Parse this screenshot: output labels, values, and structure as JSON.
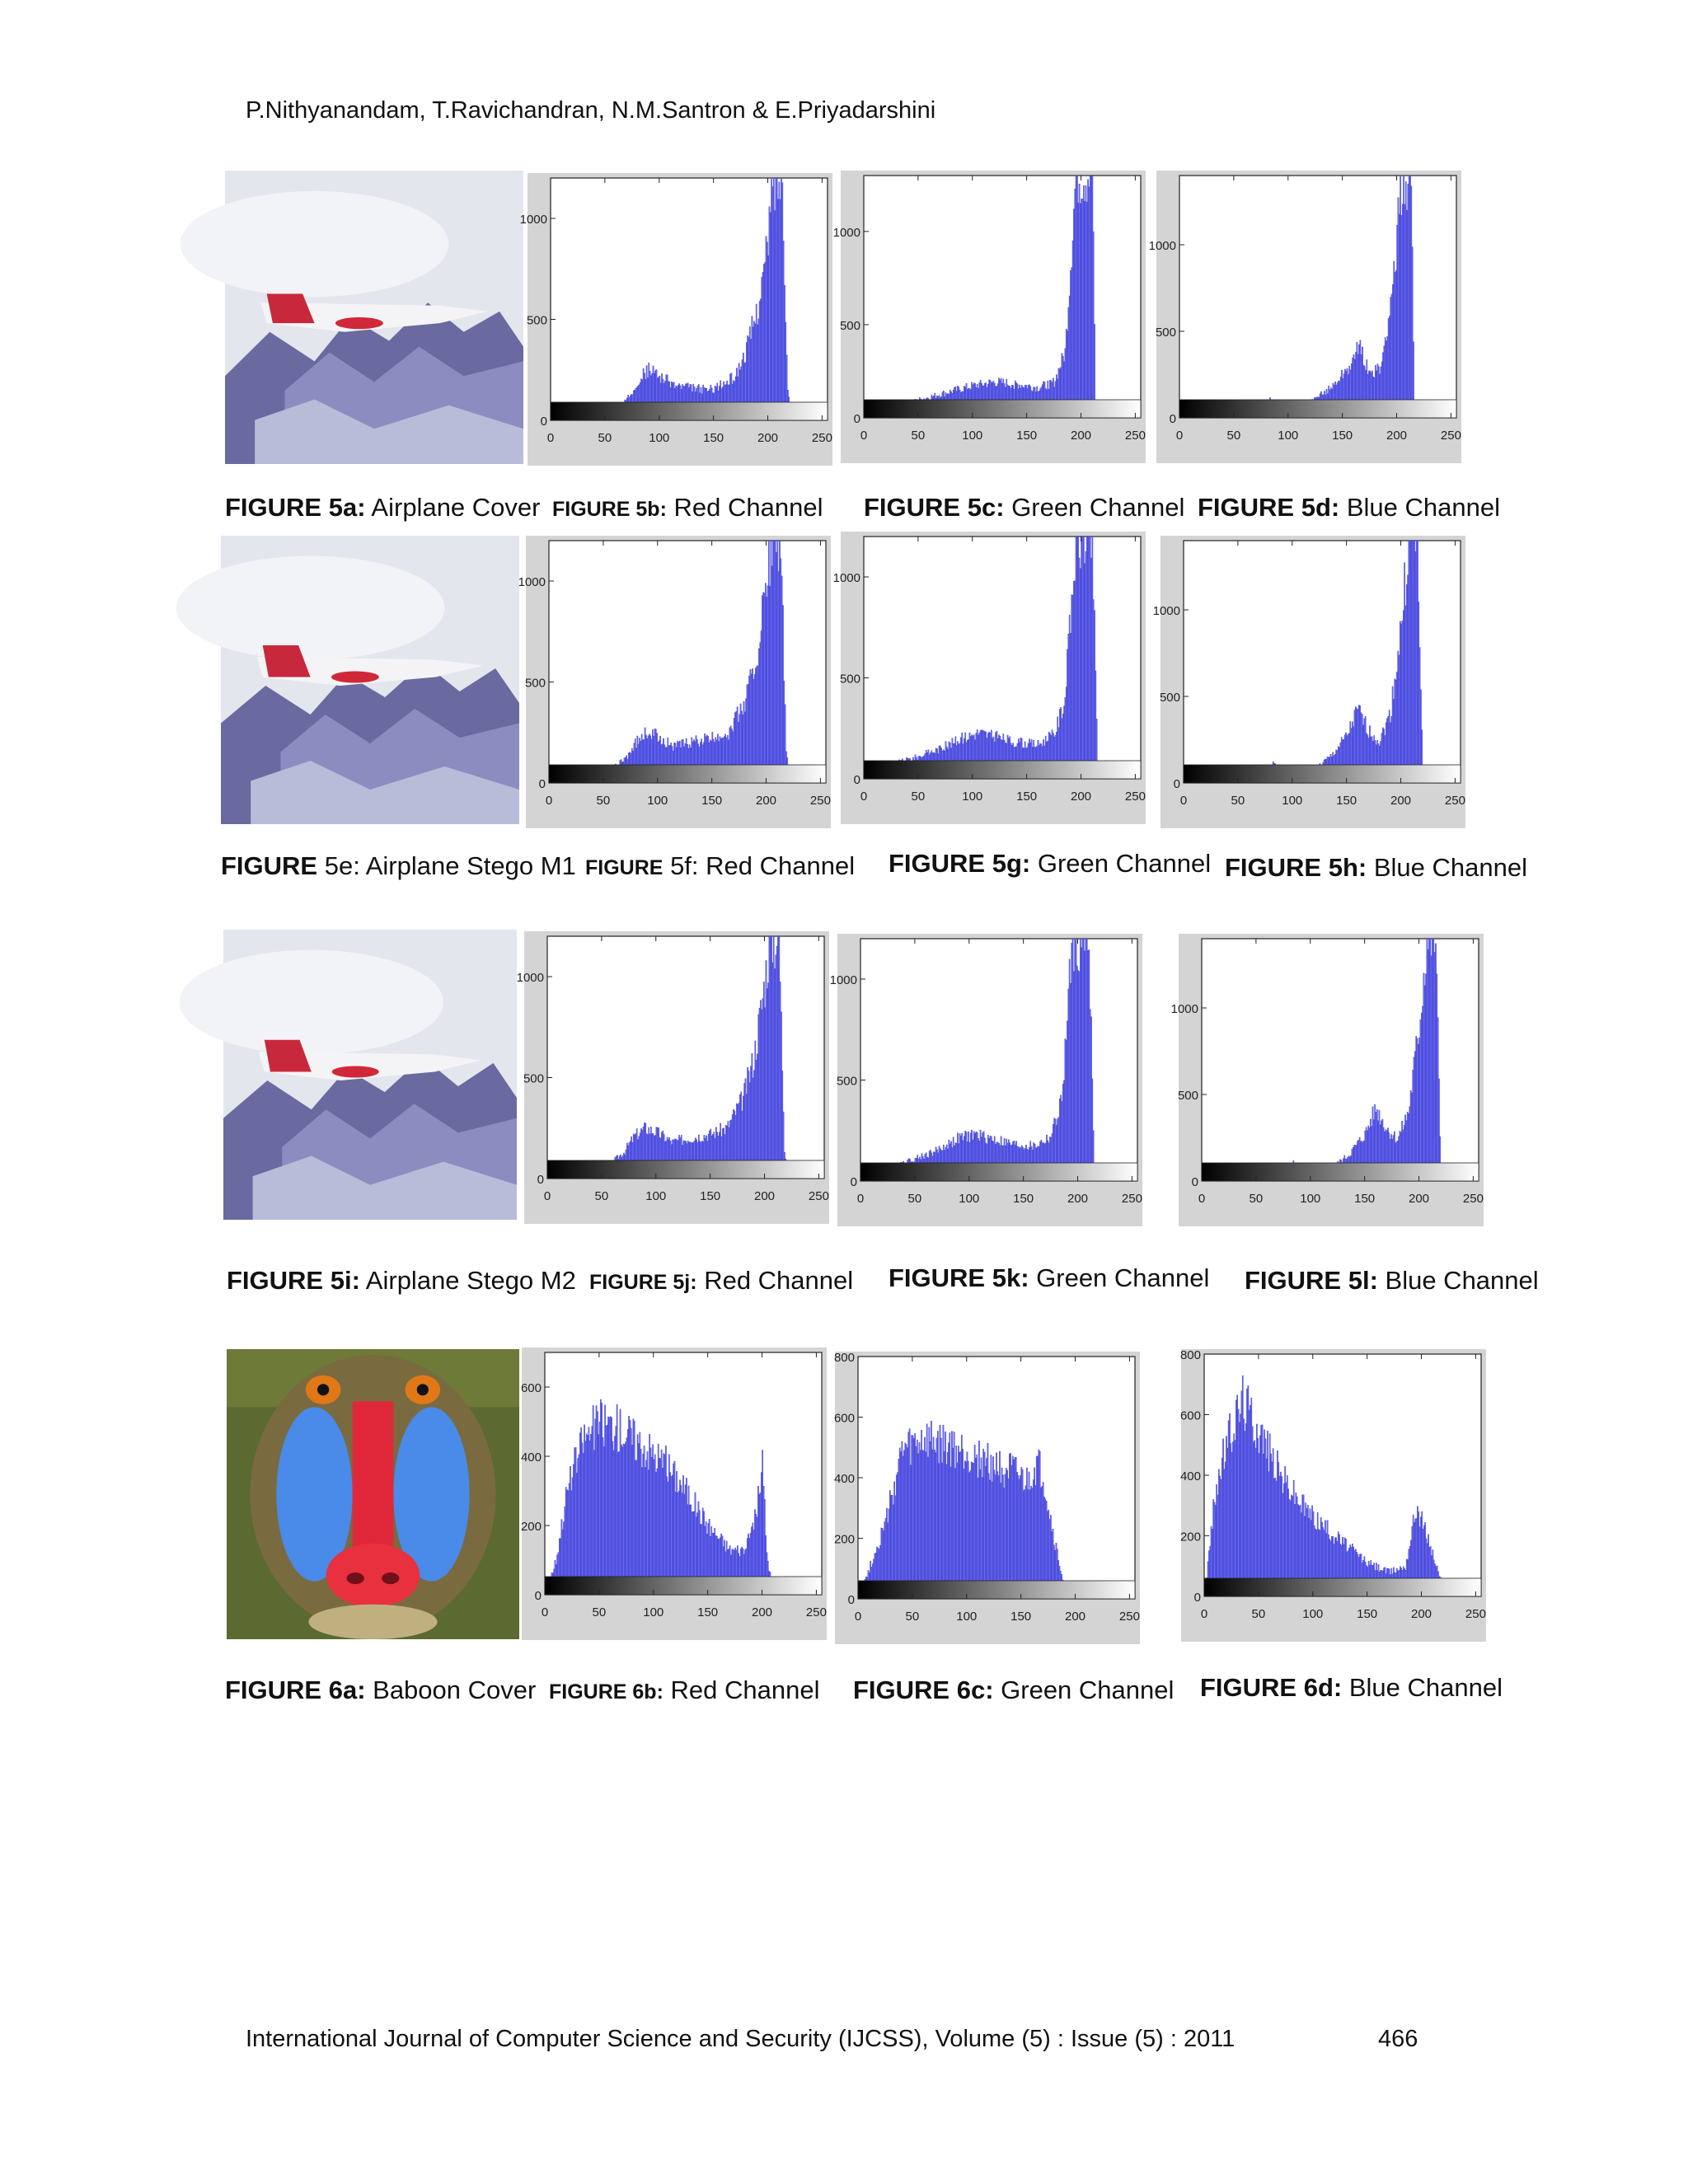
{
  "header": {
    "authors": "P.Nithyanandam, T.Ravichandran, N.M.Santron &  E.Priyadarshini"
  },
  "footer": {
    "journal": "International Journal of Computer Science and Security (IJCSS), Volume (5) : Issue (5) : 2011",
    "page": "466"
  },
  "captions": [
    {
      "label": "FIGURE 5a:",
      "text": " Airplane Cover"
    },
    {
      "label": "FIGURE  5b:",
      "text": "  Red Channel"
    },
    {
      "label": "FIGURE 5c:",
      "text": " Green Channel"
    },
    {
      "label": "FIGURE 5d:",
      "text": " Blue Channel"
    },
    {
      "label": "FIGURE",
      "text": " 5e: Airplane Stego  M1"
    },
    {
      "label": "FIGURE",
      "text": "  5f:  Red Channel"
    },
    {
      "label": "FIGURE 5g:",
      "text": " Green Channel"
    },
    {
      "label": "FIGURE 5h:",
      "text": " Blue Channel"
    },
    {
      "label": "FIGURE 5i:",
      "text": " Airplane Stego  M2"
    },
    {
      "label": "FIGURE  5j:",
      "text": "  Red Channel"
    },
    {
      "label": "FIGURE 5k:",
      "text": " Green Channel"
    },
    {
      "label": "FIGURE 5l:",
      "text": " Blue Channel"
    },
    {
      "label": "FIGURE 6a:",
      "text": " Baboon Cover"
    },
    {
      "label": "FIGURE  6b:",
      "text": "  Red Channel"
    },
    {
      "label": "FIGURE 6c:",
      "text": " Green Channel"
    },
    {
      "label": "FIGURE 6d:",
      "text": " Blue Channel"
    }
  ],
  "chart_data": [
    {
      "type": "bar",
      "id": "5b",
      "ylim": [
        0,
        1200
      ],
      "xlim": [
        0,
        255
      ],
      "yticks": [
        0,
        500,
        1000
      ],
      "xticks": [
        0,
        50,
        100,
        150,
        200,
        250
      ],
      "profile": [
        [
          0,
          0
        ],
        [
          25,
          5
        ],
        [
          40,
          20
        ],
        [
          55,
          30
        ],
        [
          70,
          100
        ],
        [
          80,
          200
        ],
        [
          90,
          250
        ],
        [
          100,
          220
        ],
        [
          115,
          170
        ],
        [
          130,
          160
        ],
        [
          145,
          150
        ],
        [
          160,
          180
        ],
        [
          170,
          220
        ],
        [
          180,
          350
        ],
        [
          190,
          550
        ],
        [
          198,
          800
        ],
        [
          205,
          1200
        ],
        [
          213,
          1200
        ],
        [
          218,
          150
        ],
        [
          222,
          0
        ],
        [
          255,
          0
        ]
      ]
    },
    {
      "type": "bar",
      "id": "5c",
      "ylim": [
        0,
        1300
      ],
      "xlim": [
        0,
        255
      ],
      "yticks": [
        0,
        500,
        1000
      ],
      "xticks": [
        0,
        50,
        100,
        150,
        200,
        250
      ],
      "profile": [
        [
          0,
          0
        ],
        [
          5,
          30
        ],
        [
          20,
          70
        ],
        [
          40,
          80
        ],
        [
          60,
          110
        ],
        [
          80,
          140
        ],
        [
          100,
          170
        ],
        [
          120,
          190
        ],
        [
          140,
          180
        ],
        [
          160,
          160
        ],
        [
          175,
          190
        ],
        [
          185,
          350
        ],
        [
          195,
          1300
        ],
        [
          210,
          1300
        ],
        [
          213,
          60
        ],
        [
          218,
          0
        ],
        [
          255,
          0
        ]
      ]
    },
    {
      "type": "bar",
      "id": "5d",
      "ylim": [
        0,
        1400
      ],
      "xlim": [
        0,
        255
      ],
      "yticks": [
        0,
        500,
        1000
      ],
      "xticks": [
        0,
        50,
        100,
        150,
        200,
        250
      ],
      "profile": [
        [
          0,
          0
        ],
        [
          75,
          0
        ],
        [
          82,
          110
        ],
        [
          90,
          70
        ],
        [
          105,
          40
        ],
        [
          115,
          60
        ],
        [
          125,
          110
        ],
        [
          140,
          180
        ],
        [
          160,
          330
        ],
        [
          165,
          420
        ],
        [
          175,
          250
        ],
        [
          185,
          280
        ],
        [
          195,
          700
        ],
        [
          205,
          1400
        ],
        [
          213,
          1400
        ],
        [
          216,
          0
        ],
        [
          255,
          0
        ]
      ]
    },
    {
      "type": "bar",
      "id": "5f",
      "ylim": [
        0,
        1200
      ],
      "xlim": [
        0,
        255
      ],
      "yticks": [
        0,
        500,
        1000
      ],
      "xticks": [
        0,
        50,
        100,
        150,
        200,
        250
      ],
      "profile": [
        [
          0,
          0
        ],
        [
          25,
          10
        ],
        [
          40,
          30
        ],
        [
          55,
          60
        ],
        [
          70,
          120
        ],
        [
          80,
          200
        ],
        [
          90,
          250
        ],
        [
          100,
          230
        ],
        [
          115,
          180
        ],
        [
          130,
          200
        ],
        [
          150,
          220
        ],
        [
          165,
          250
        ],
        [
          180,
          400
        ],
        [
          190,
          600
        ],
        [
          198,
          900
        ],
        [
          205,
          1200
        ],
        [
          213,
          1200
        ],
        [
          218,
          150
        ],
        [
          222,
          0
        ],
        [
          255,
          0
        ]
      ]
    },
    {
      "type": "bar",
      "id": "5g",
      "ylim": [
        0,
        1200
      ],
      "xlim": [
        0,
        255
      ],
      "yticks": [
        0,
        500,
        1000
      ],
      "xticks": [
        0,
        50,
        100,
        150,
        200,
        250
      ],
      "profile": [
        [
          0,
          0
        ],
        [
          10,
          60
        ],
        [
          30,
          80
        ],
        [
          50,
          110
        ],
        [
          70,
          150
        ],
        [
          90,
          200
        ],
        [
          105,
          230
        ],
        [
          120,
          210
        ],
        [
          140,
          180
        ],
        [
          160,
          170
        ],
        [
          175,
          220
        ],
        [
          185,
          400
        ],
        [
          195,
          1200
        ],
        [
          210,
          1200
        ],
        [
          215,
          60
        ],
        [
          220,
          0
        ],
        [
          255,
          0
        ]
      ]
    },
    {
      "type": "bar",
      "id": "5h",
      "ylim": [
        0,
        1400
      ],
      "xlim": [
        0,
        255
      ],
      "yticks": [
        0,
        500,
        1000
      ],
      "xticks": [
        0,
        50,
        100,
        150,
        200,
        250
      ],
      "profile": [
        [
          0,
          0
        ],
        [
          75,
          0
        ],
        [
          82,
          110
        ],
        [
          90,
          80
        ],
        [
          105,
          60
        ],
        [
          120,
          80
        ],
        [
          135,
          150
        ],
        [
          150,
          270
        ],
        [
          160,
          420
        ],
        [
          170,
          300
        ],
        [
          180,
          240
        ],
        [
          190,
          400
        ],
        [
          200,
          900
        ],
        [
          207,
          1400
        ],
        [
          215,
          1400
        ],
        [
          220,
          0
        ],
        [
          255,
          0
        ]
      ]
    },
    {
      "type": "bar",
      "id": "5j",
      "ylim": [
        0,
        1200
      ],
      "xlim": [
        0,
        255
      ],
      "yticks": [
        0,
        500,
        1000
      ],
      "xticks": [
        0,
        50,
        100,
        150,
        200,
        250
      ],
      "profile": [
        [
          0,
          0
        ],
        [
          25,
          10
        ],
        [
          40,
          30
        ],
        [
          55,
          60
        ],
        [
          70,
          130
        ],
        [
          80,
          210
        ],
        [
          90,
          250
        ],
        [
          100,
          230
        ],
        [
          115,
          180
        ],
        [
          130,
          200
        ],
        [
          150,
          220
        ],
        [
          165,
          250
        ],
        [
          180,
          400
        ],
        [
          190,
          600
        ],
        [
          198,
          900
        ],
        [
          205,
          1200
        ],
        [
          213,
          1200
        ],
        [
          218,
          150
        ],
        [
          222,
          0
        ],
        [
          255,
          0
        ]
      ]
    },
    {
      "type": "bar",
      "id": "5k",
      "ylim": [
        0,
        1200
      ],
      "xlim": [
        0,
        255
      ],
      "yticks": [
        0,
        500,
        1000
      ],
      "xticks": [
        0,
        50,
        100,
        150,
        200,
        250
      ],
      "profile": [
        [
          0,
          0
        ],
        [
          10,
          60
        ],
        [
          30,
          80
        ],
        [
          50,
          110
        ],
        [
          70,
          150
        ],
        [
          90,
          210
        ],
        [
          105,
          230
        ],
        [
          120,
          210
        ],
        [
          140,
          180
        ],
        [
          160,
          170
        ],
        [
          175,
          220
        ],
        [
          185,
          400
        ],
        [
          195,
          1200
        ],
        [
          210,
          1200
        ],
        [
          215,
          60
        ],
        [
          220,
          0
        ],
        [
          255,
          0
        ]
      ]
    },
    {
      "type": "bar",
      "id": "5l",
      "ylim": [
        0,
        1400
      ],
      "xlim": [
        0,
        255
      ],
      "yticks": [
        0,
        500,
        1000
      ],
      "xticks": [
        0,
        50,
        100,
        150,
        200,
        250
      ],
      "profile": [
        [
          0,
          0
        ],
        [
          75,
          0
        ],
        [
          82,
          110
        ],
        [
          90,
          80
        ],
        [
          105,
          60
        ],
        [
          120,
          80
        ],
        [
          135,
          150
        ],
        [
          150,
          270
        ],
        [
          160,
          420
        ],
        [
          170,
          300
        ],
        [
          180,
          240
        ],
        [
          190,
          400
        ],
        [
          200,
          900
        ],
        [
          207,
          1400
        ],
        [
          215,
          1400
        ],
        [
          220,
          0
        ],
        [
          255,
          0
        ]
      ]
    },
    {
      "type": "bar",
      "id": "6b",
      "ylim": [
        0,
        700
      ],
      "xlim": [
        0,
        255
      ],
      "yticks": [
        0,
        200,
        400,
        600
      ],
      "xticks": [
        0,
        50,
        100,
        150,
        200,
        250
      ],
      "profile": [
        [
          0,
          0
        ],
        [
          10,
          100
        ],
        [
          20,
          300
        ],
        [
          35,
          450
        ],
        [
          50,
          500
        ],
        [
          70,
          480
        ],
        [
          90,
          430
        ],
        [
          110,
          380
        ],
        [
          130,
          300
        ],
        [
          150,
          200
        ],
        [
          170,
          130
        ],
        [
          185,
          130
        ],
        [
          195,
          250
        ],
        [
          200,
          380
        ],
        [
          204,
          120
        ],
        [
          210,
          0
        ],
        [
          255,
          0
        ]
      ]
    },
    {
      "type": "bar",
      "id": "6c",
      "ylim": [
        0,
        800
      ],
      "xlim": [
        0,
        255
      ],
      "yticks": [
        0,
        200,
        400,
        600,
        800
      ],
      "xticks": [
        0,
        50,
        100,
        150,
        200,
        250
      ],
      "profile": [
        [
          0,
          0
        ],
        [
          10,
          100
        ],
        [
          25,
          250
        ],
        [
          40,
          480
        ],
        [
          60,
          520
        ],
        [
          80,
          500
        ],
        [
          100,
          480
        ],
        [
          120,
          450
        ],
        [
          140,
          420
        ],
        [
          155,
          380
        ],
        [
          165,
          440
        ],
        [
          170,
          400
        ],
        [
          180,
          200
        ],
        [
          190,
          30
        ],
        [
          195,
          0
        ],
        [
          255,
          0
        ]
      ]
    },
    {
      "type": "bar",
      "id": "6d",
      "ylim": [
        0,
        800
      ],
      "xlim": [
        0,
        255
      ],
      "yticks": [
        0,
        200,
        400,
        600,
        800
      ],
      "xticks": [
        0,
        50,
        100,
        150,
        200,
        250
      ],
      "profile": [
        [
          0,
          0
        ],
        [
          10,
          350
        ],
        [
          20,
          500
        ],
        [
          35,
          650
        ],
        [
          50,
          550
        ],
        [
          70,
          400
        ],
        [
          90,
          300
        ],
        [
          110,
          230
        ],
        [
          130,
          170
        ],
        [
          150,
          110
        ],
        [
          170,
          80
        ],
        [
          185,
          100
        ],
        [
          195,
          300
        ],
        [
          205,
          200
        ],
        [
          215,
          80
        ],
        [
          225,
          0
        ],
        [
          255,
          0
        ]
      ]
    }
  ]
}
